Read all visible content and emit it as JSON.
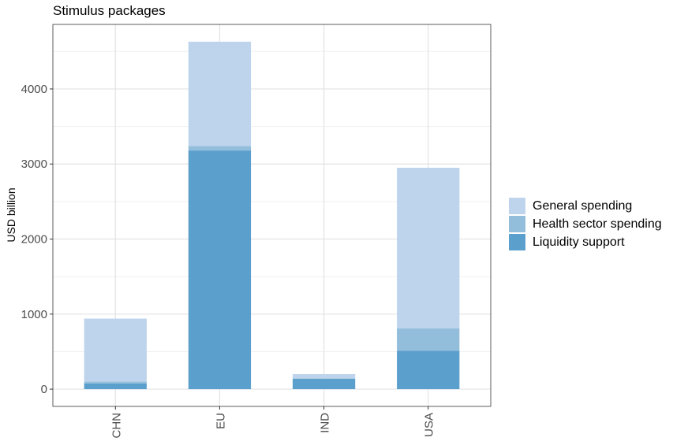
{
  "chart_data": {
    "type": "bar",
    "stacked": true,
    "title": "Stimulus packages",
    "xlabel": "",
    "ylabel": "USD billion",
    "categories": [
      "CHN",
      "EU",
      "IND",
      "USA"
    ],
    "series": [
      {
        "name": "Liquidity support",
        "values": [
          75,
          3180,
          140,
          510
        ],
        "color": "#5B9FCD"
      },
      {
        "name": "Health sector spending",
        "values": [
          25,
          60,
          5,
          300
        ],
        "color": "#93BEDB"
      },
      {
        "name": "General spending",
        "values": [
          840,
          1390,
          55,
          2140
        ],
        "color": "#BDD4EC"
      }
    ],
    "yticks": [
      0,
      1000,
      2000,
      3000,
      4000
    ],
    "ylim": [
      -230,
      4860
    ],
    "grid": true,
    "legend_position": "right"
  }
}
